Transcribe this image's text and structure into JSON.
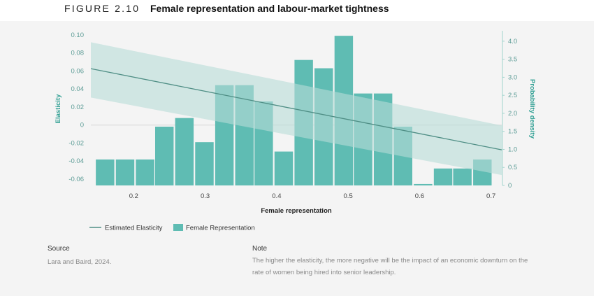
{
  "figure": {
    "label": "FIGURE 2.10",
    "title": "Female representation and labour-market tightness"
  },
  "chart_data": {
    "type": "bar+line",
    "title": "Female representation and labour-market tightness",
    "xlabel": "Female representation",
    "ylabel_left": "Elasticity",
    "ylabel_right": "Probability density",
    "xlim": [
      0.14,
      0.715
    ],
    "ylim_left": [
      -0.067,
      0.103
    ],
    "ylim_right": [
      0,
      4.25
    ],
    "x_ticks": [
      0.2,
      0.3,
      0.4,
      0.5,
      0.6,
      0.7
    ],
    "x_tick_labels": [
      "0.2",
      "0.3",
      "0.4",
      "0.5",
      "0.6",
      "0.7"
    ],
    "y_left_ticks": [
      0.1,
      0.08,
      0.06,
      0.04,
      0.02,
      0,
      -0.02,
      -0.04,
      -0.06
    ],
    "y_left_tick_labels": [
      "0.10",
      "0.08",
      "0.06",
      "0.04",
      "0.02",
      "0",
      "-0.02",
      "-0.04",
      "-0.06"
    ],
    "y_right_ticks": [
      4.0,
      3.5,
      3.0,
      2.5,
      2.0,
      1.5,
      1.0,
      0.5,
      0
    ],
    "y_right_tick_labels": [
      "4.0",
      "3.5",
      "3.0",
      "2.5",
      "2.0",
      "1.5",
      "1.0",
      "0.5",
      "0"
    ],
    "histogram": {
      "name": "Female Representation",
      "bin_width": 0.0278,
      "bin_starts": [
        0.146,
        0.174,
        0.202,
        0.229,
        0.257,
        0.285,
        0.313,
        0.341,
        0.368,
        0.396,
        0.424,
        0.452,
        0.48,
        0.507,
        0.535,
        0.563,
        0.591,
        0.619,
        0.646,
        0.674
      ],
      "density": [
        0.72,
        0.72,
        0.72,
        1.63,
        1.87,
        1.2,
        2.78,
        2.78,
        2.33,
        0.94,
        3.48,
        3.25,
        4.15,
        2.55,
        2.55,
        1.63,
        0.04,
        0.47,
        0.47,
        0.72
      ]
    },
    "line": {
      "name": "Estimated Elasticity",
      "x": [
        0.14,
        0.715
      ],
      "y": [
        0.0625,
        -0.0275
      ],
      "ci_upper": [
        0.0918,
        -0.0005
      ],
      "ci_lower": [
        0.0305,
        -0.0555
      ]
    },
    "legend": [
      "Estimated Elasticity",
      "Female Representation"
    ],
    "colors": {
      "bar": "#5fbcb3",
      "line": "#4f8e85",
      "band": "#b8dcd7",
      "axis_left": "#5c9c96",
      "axis_title": "#2f9f93"
    }
  },
  "source": {
    "heading": "Source",
    "text": "Lara and Baird, 2024."
  },
  "note": {
    "heading": "Note",
    "line1": "The higher the elasticity, the more negative will be the impact of an economic downturn on the",
    "line2": "rate of women being hired into senior leadership."
  }
}
